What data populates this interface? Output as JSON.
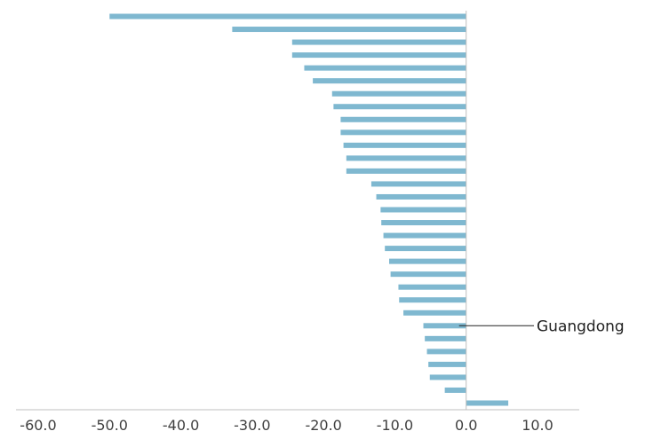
{
  "chart_data": {
    "type": "bar",
    "orientation": "horizontal",
    "title": "",
    "xlabel": "",
    "ylabel": "",
    "xlim": [
      -62,
      13
    ],
    "x_ticks": [
      "-60.0",
      "-50.0",
      "-40.0",
      "-30.0",
      "-20.0",
      "-10.0",
      "0.0",
      "10.0"
    ],
    "grid": false,
    "bar_color": "#7fb8d0",
    "values": [
      -50.0,
      -32.8,
      -24.4,
      -24.4,
      -22.7,
      -21.5,
      -18.8,
      -18.6,
      -17.6,
      -17.6,
      -17.2,
      -16.8,
      -16.8,
      -13.3,
      -12.6,
      -12.0,
      -11.9,
      -11.6,
      -11.4,
      -10.8,
      -10.6,
      -9.5,
      -9.4,
      -8.8,
      -6.0,
      -5.8,
      -5.5,
      -5.3,
      -5.1,
      -3.0,
      5.9
    ],
    "annotation": {
      "label": "Guangdong",
      "index": 24
    }
  }
}
